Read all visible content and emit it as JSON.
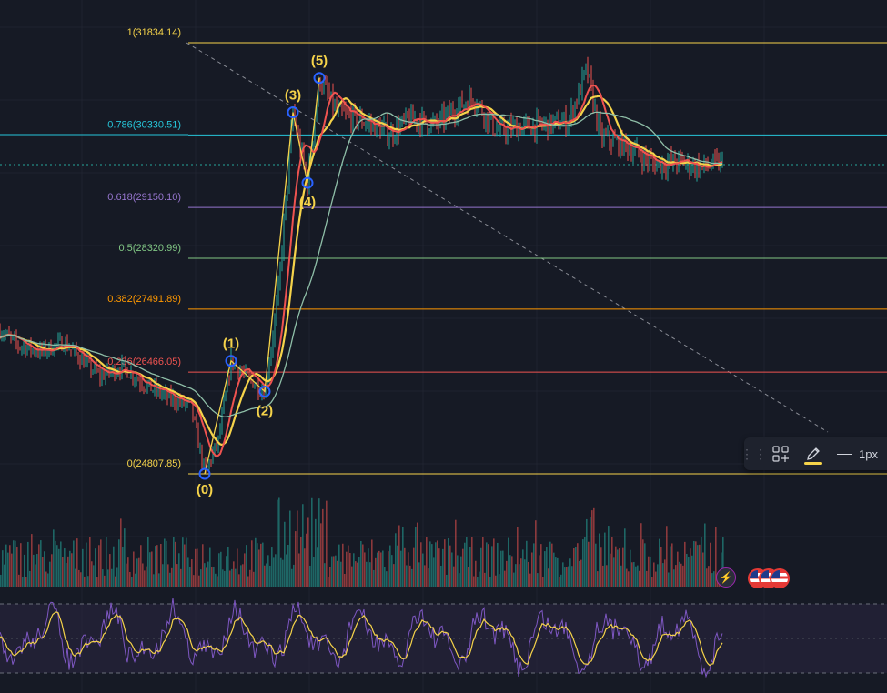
{
  "chart_data": {
    "type": "line",
    "symbol_context": "candlestick price chart with Fibonacci retracement, Elliott wave labels, moving averages, volume and oscillator",
    "fib_levels": [
      {
        "ratio": "1",
        "price": 31834.14,
        "label": "1(31834.14)",
        "color": "#f5d34a"
      },
      {
        "ratio": "0.786",
        "price": 30330.51,
        "label": "0.786(30330.51)",
        "color": "#26c6da"
      },
      {
        "ratio": "0.618",
        "price": 29150.1,
        "label": "0.618(29150.10)",
        "color": "#9575cd"
      },
      {
        "ratio": "0.5",
        "price": 28320.99,
        "label": "0.5(28320.99)",
        "color": "#81c784"
      },
      {
        "ratio": "0.382",
        "price": 27491.89,
        "label": "0.382(27491.89)",
        "color": "#ff9800"
      },
      {
        "ratio": "0.236",
        "price": 26466.05,
        "label": "0.236(26466.05)",
        "color": "#ef5350"
      },
      {
        "ratio": "0",
        "price": 24807.85,
        "label": "0(24807.85)",
        "color": "#f5d34a"
      }
    ],
    "current_price_line_color": "#26a69a",
    "elliott_waves": [
      {
        "label": "(0)",
        "price": 24807.85
      },
      {
        "label": "(1)",
        "price": 26650
      },
      {
        "label": "(2)",
        "price": 26150
      },
      {
        "label": "(3)",
        "price": 30700
      },
      {
        "label": "(4)",
        "price": 29550
      },
      {
        "label": "(5)",
        "price": 31260
      }
    ],
    "moving_averages": [
      {
        "color": "#f5d34a"
      },
      {
        "color": "#ef5350"
      },
      {
        "color": "#8fbfa8"
      }
    ],
    "volume_colors": {
      "up": "#26a69a",
      "down": "#ef5350"
    },
    "oscillator": {
      "line_color": "#7e57c2",
      "signal_color": "#f5d34a",
      "band_color": "#2a2440"
    }
  },
  "toolbar": {
    "drag_icon": "drag-handle-icon",
    "objects_icon": "objects-tree-icon",
    "pencil_icon": "pencil-icon",
    "pencil_color": "#f5d34a",
    "line_width_label": "1px"
  },
  "events": {
    "lightning_icon": "lightning-icon",
    "flag_icon": "us-flag-icon"
  }
}
